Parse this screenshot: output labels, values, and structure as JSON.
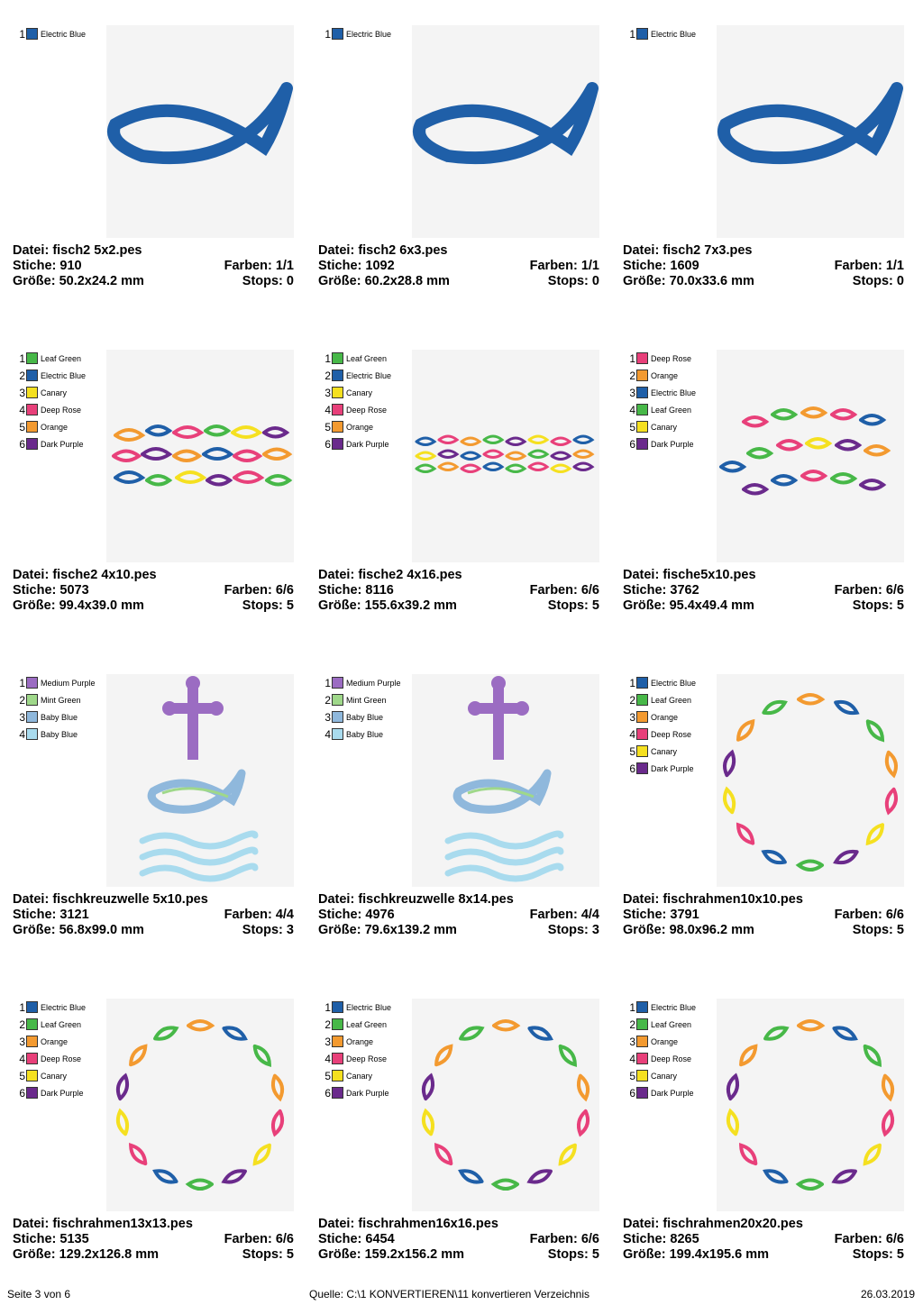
{
  "labels": {
    "file": "Datei:",
    "stitches": "Stiche:",
    "size": "Größe:",
    "colors": "Farben:",
    "stops": "Stops:"
  },
  "palette": {
    "Electric Blue": "#1f5fa8",
    "Leaf Green": "#47b848",
    "Canary": "#f5e020",
    "Deep Rose": "#e8407a",
    "Orange": "#f39a30",
    "Dark Purple": "#6a2a8c",
    "Medium Purple": "#9b6cc2",
    "Mint Green": "#9fd88a",
    "Baby Blue": "#8fb8dc",
    "Baby Blue 2": "#a9dbee"
  },
  "designs": [
    {
      "file": "fisch2 5x2.pes",
      "stitches": "910",
      "colors": "1/1",
      "size": "50.2x24.2 mm",
      "stops": "0",
      "thread_colors": [
        {
          "no": "1",
          "name": "Electric Blue",
          "hex": "#1f5fa8"
        }
      ]
    },
    {
      "file": "fisch2 6x3.pes",
      "stitches": "1092",
      "colors": "1/1",
      "size": "60.2x28.8 mm",
      "stops": "0",
      "thread_colors": [
        {
          "no": "1",
          "name": "Electric Blue",
          "hex": "#1f5fa8"
        }
      ]
    },
    {
      "file": "fisch2 7x3.pes",
      "stitches": "1609",
      "colors": "1/1",
      "size": "70.0x33.6 mm",
      "stops": "0",
      "thread_colors": [
        {
          "no": "1",
          "name": "Electric Blue",
          "hex": "#1f5fa8"
        }
      ]
    },
    {
      "file": "fische2 4x10.pes",
      "stitches": "5073",
      "colors": "6/6",
      "size": "99.4x39.0 mm",
      "stops": "5",
      "thread_colors": [
        {
          "no": "1",
          "name": "Leaf Green",
          "hex": "#47b848"
        },
        {
          "no": "2",
          "name": "Electric Blue",
          "hex": "#1f5fa8"
        },
        {
          "no": "3",
          "name": "Canary",
          "hex": "#f5e020"
        },
        {
          "no": "4",
          "name": "Deep Rose",
          "hex": "#e8407a"
        },
        {
          "no": "5",
          "name": "Orange",
          "hex": "#f39a30"
        },
        {
          "no": "6",
          "name": "Dark Purple",
          "hex": "#6a2a8c"
        }
      ]
    },
    {
      "file": "fische2 4x16.pes",
      "stitches": "8116",
      "colors": "6/6",
      "size": "155.6x39.2 mm",
      "stops": "5",
      "thread_colors": [
        {
          "no": "1",
          "name": "Leaf Green",
          "hex": "#47b848"
        },
        {
          "no": "2",
          "name": "Electric Blue",
          "hex": "#1f5fa8"
        },
        {
          "no": "3",
          "name": "Canary",
          "hex": "#f5e020"
        },
        {
          "no": "4",
          "name": "Deep Rose",
          "hex": "#e8407a"
        },
        {
          "no": "5",
          "name": "Orange",
          "hex": "#f39a30"
        },
        {
          "no": "6",
          "name": "Dark Purple",
          "hex": "#6a2a8c"
        }
      ]
    },
    {
      "file": "fische5x10.pes",
      "stitches": "3762",
      "colors": "6/6",
      "size": "95.4x49.4 mm",
      "stops": "5",
      "thread_colors": [
        {
          "no": "1",
          "name": "Deep Rose",
          "hex": "#e8407a"
        },
        {
          "no": "2",
          "name": "Orange",
          "hex": "#f39a30"
        },
        {
          "no": "3",
          "name": "Electric Blue",
          "hex": "#1f5fa8"
        },
        {
          "no": "4",
          "name": "Leaf Green",
          "hex": "#47b848"
        },
        {
          "no": "5",
          "name": "Canary",
          "hex": "#f5e020"
        },
        {
          "no": "6",
          "name": "Dark Purple",
          "hex": "#6a2a8c"
        }
      ]
    },
    {
      "file": "fischkreuzwelle 5x10.pes",
      "stitches": "3121",
      "colors": "4/4",
      "size": "56.8x99.0 mm",
      "stops": "3",
      "thread_colors": [
        {
          "no": "1",
          "name": "Medium Purple",
          "hex": "#9b6cc2"
        },
        {
          "no": "2",
          "name": "Mint Green",
          "hex": "#9fd88a"
        },
        {
          "no": "3",
          "name": "Baby Blue",
          "hex": "#8fb8dc"
        },
        {
          "no": "4",
          "name": "Baby Blue",
          "hex": "#a9dbee"
        }
      ]
    },
    {
      "file": "fischkreuzwelle 8x14.pes",
      "stitches": "4976",
      "colors": "4/4",
      "size": "79.6x139.2 mm",
      "stops": "3",
      "thread_colors": [
        {
          "no": "1",
          "name": "Medium Purple",
          "hex": "#9b6cc2"
        },
        {
          "no": "2",
          "name": "Mint Green",
          "hex": "#9fd88a"
        },
        {
          "no": "3",
          "name": "Baby Blue",
          "hex": "#8fb8dc"
        },
        {
          "no": "4",
          "name": "Baby Blue",
          "hex": "#a9dbee"
        }
      ]
    },
    {
      "file": "fischrahmen10x10.pes",
      "stitches": "3791",
      "colors": "6/6",
      "size": "98.0x96.2 mm",
      "stops": "5",
      "thread_colors": [
        {
          "no": "1",
          "name": "Electric Blue",
          "hex": "#1f5fa8"
        },
        {
          "no": "2",
          "name": "Leaf Green",
          "hex": "#47b848"
        },
        {
          "no": "3",
          "name": "Orange",
          "hex": "#f39a30"
        },
        {
          "no": "4",
          "name": "Deep Rose",
          "hex": "#e8407a"
        },
        {
          "no": "5",
          "name": "Canary",
          "hex": "#f5e020"
        },
        {
          "no": "6",
          "name": "Dark Purple",
          "hex": "#6a2a8c"
        }
      ]
    },
    {
      "file": "fischrahmen13x13.pes",
      "stitches": "5135",
      "colors": "6/6",
      "size": "129.2x126.8 mm",
      "stops": "5",
      "thread_colors": [
        {
          "no": "1",
          "name": "Electric Blue",
          "hex": "#1f5fa8"
        },
        {
          "no": "2",
          "name": "Leaf Green",
          "hex": "#47b848"
        },
        {
          "no": "3",
          "name": "Orange",
          "hex": "#f39a30"
        },
        {
          "no": "4",
          "name": "Deep Rose",
          "hex": "#e8407a"
        },
        {
          "no": "5",
          "name": "Canary",
          "hex": "#f5e020"
        },
        {
          "no": "6",
          "name": "Dark Purple",
          "hex": "#6a2a8c"
        }
      ]
    },
    {
      "file": "fischrahmen16x16.pes",
      "stitches": "6454",
      "colors": "6/6",
      "size": "159.2x156.2 mm",
      "stops": "5",
      "thread_colors": [
        {
          "no": "1",
          "name": "Electric Blue",
          "hex": "#1f5fa8"
        },
        {
          "no": "2",
          "name": "Leaf Green",
          "hex": "#47b848"
        },
        {
          "no": "3",
          "name": "Orange",
          "hex": "#f39a30"
        },
        {
          "no": "4",
          "name": "Deep Rose",
          "hex": "#e8407a"
        },
        {
          "no": "5",
          "name": "Canary",
          "hex": "#f5e020"
        },
        {
          "no": "6",
          "name": "Dark Purple",
          "hex": "#6a2a8c"
        }
      ]
    },
    {
      "file": "fischrahmen20x20.pes",
      "stitches": "8265",
      "colors": "6/6",
      "size": "199.4x195.6 mm",
      "stops": "5",
      "thread_colors": [
        {
          "no": "1",
          "name": "Electric Blue",
          "hex": "#1f5fa8"
        },
        {
          "no": "2",
          "name": "Leaf Green",
          "hex": "#47b848"
        },
        {
          "no": "3",
          "name": "Orange",
          "hex": "#f39a30"
        },
        {
          "no": "4",
          "name": "Deep Rose",
          "hex": "#e8407a"
        },
        {
          "no": "5",
          "name": "Canary",
          "hex": "#f5e020"
        },
        {
          "no": "6",
          "name": "Dark Purple",
          "hex": "#6a2a8c"
        }
      ]
    }
  ],
  "footer": {
    "page": "Seite 3 von 6",
    "source": "Quelle: C:\\1 KONVERTIEREN\\11 konvertieren Verzeichnis",
    "date": "26.03.2019"
  }
}
